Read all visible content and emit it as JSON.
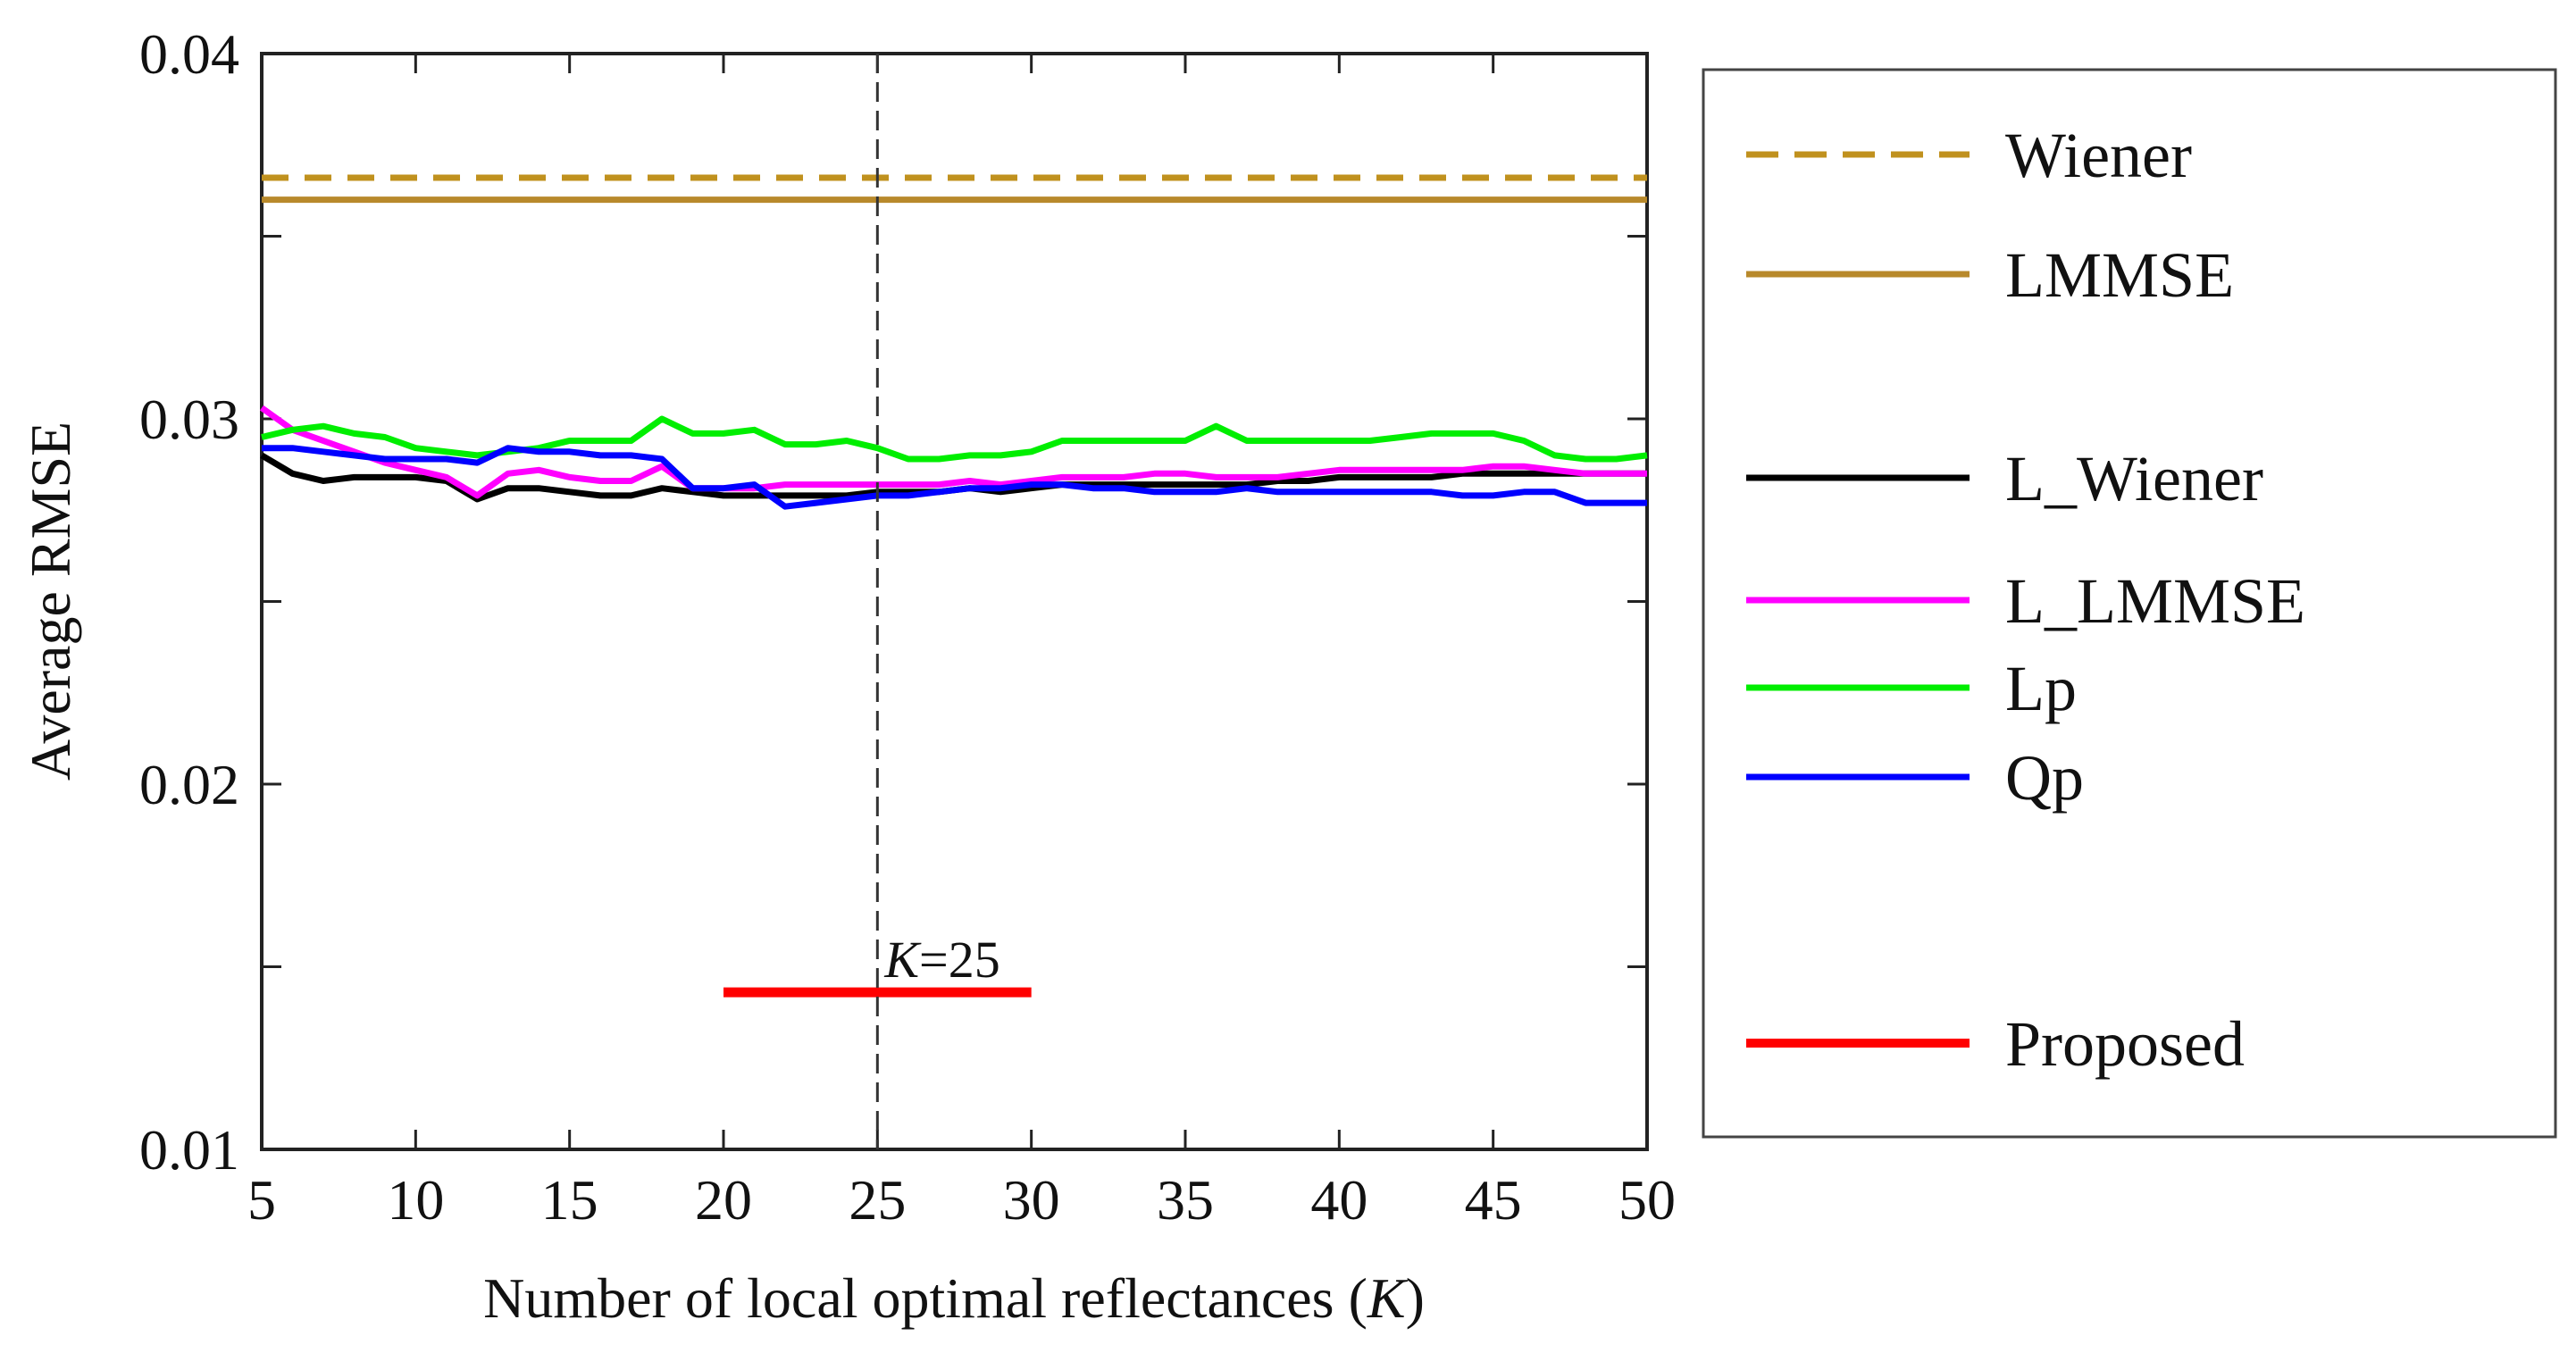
{
  "chart_data": {
    "type": "line",
    "title": "",
    "xlabel": "Number of local optimal reflectances (",
    "xlabel_var": "K",
    "xlabel_end": ")",
    "ylabel": "Average RMSE",
    "xlim": [
      5,
      50
    ],
    "ylim": [
      0.01,
      0.04
    ],
    "x_ticks": [
      5,
      10,
      15,
      20,
      25,
      30,
      35,
      40,
      45,
      50
    ],
    "x_tick_labels": [
      "5",
      "10",
      "15",
      "20",
      "25",
      "30",
      "35",
      "40",
      "45",
      "50"
    ],
    "y_ticks": [
      0.01,
      0.02,
      0.03,
      0.04
    ],
    "y_tick_labels": [
      "0.01",
      "0.02",
      "0.03",
      "0.04"
    ],
    "x": [
      5,
      6,
      7,
      8,
      9,
      10,
      11,
      12,
      13,
      14,
      15,
      16,
      17,
      18,
      19,
      20,
      21,
      22,
      23,
      24,
      25,
      26,
      27,
      28,
      29,
      30,
      31,
      32,
      33,
      34,
      35,
      36,
      37,
      38,
      39,
      40,
      41,
      42,
      43,
      44,
      45,
      46,
      47,
      48,
      49,
      50
    ],
    "legend_position": "right",
    "series": [
      {
        "name": "Wiener",
        "color": "#C0911E",
        "style": "dashed",
        "constant": 0.0366
      },
      {
        "name": "LMMSE",
        "color": "#B8892B",
        "style": "solid",
        "constant": 0.036
      },
      {
        "name": "L_Wiener",
        "color": "#000000",
        "style": "solid",
        "values": [
          0.029,
          0.0285,
          0.0283,
          0.0284,
          0.0284,
          0.0284,
          0.0283,
          0.0278,
          0.0281,
          0.0281,
          0.028,
          0.0279,
          0.0279,
          0.0281,
          0.028,
          0.0279,
          0.0279,
          0.0279,
          0.0279,
          0.0279,
          0.028,
          0.028,
          0.028,
          0.0281,
          0.028,
          0.0281,
          0.0282,
          0.0282,
          0.0282,
          0.0282,
          0.0282,
          0.0282,
          0.0282,
          0.0283,
          0.0283,
          0.0284,
          0.0284,
          0.0284,
          0.0284,
          0.0285,
          0.0285,
          0.0285,
          0.0285,
          0.0285,
          0.0285,
          0.0285
        ]
      },
      {
        "name": "L_LMMSE",
        "color": "#FF00FF",
        "style": "solid",
        "values": [
          0.0303,
          0.0297,
          0.0294,
          0.0291,
          0.0288,
          0.0286,
          0.0284,
          0.0279,
          0.0285,
          0.0286,
          0.0284,
          0.0283,
          0.0283,
          0.0287,
          0.0281,
          0.0281,
          0.0281,
          0.0282,
          0.0282,
          0.0282,
          0.0282,
          0.0282,
          0.0282,
          0.0283,
          0.0282,
          0.0283,
          0.0284,
          0.0284,
          0.0284,
          0.0285,
          0.0285,
          0.0284,
          0.0284,
          0.0284,
          0.0285,
          0.0286,
          0.0286,
          0.0286,
          0.0286,
          0.0286,
          0.0287,
          0.0287,
          0.0286,
          0.0285,
          0.0285,
          0.0285
        ]
      },
      {
        "name": "Lp",
        "color": "#00EE00",
        "style": "solid",
        "values": [
          0.0295,
          0.0297,
          0.0298,
          0.0296,
          0.0295,
          0.0292,
          0.0291,
          0.029,
          0.0291,
          0.0292,
          0.0294,
          0.0294,
          0.0294,
          0.03,
          0.0296,
          0.0296,
          0.0297,
          0.0293,
          0.0293,
          0.0294,
          0.0292,
          0.0289,
          0.0289,
          0.029,
          0.029,
          0.0291,
          0.0294,
          0.0294,
          0.0294,
          0.0294,
          0.0294,
          0.0298,
          0.0294,
          0.0294,
          0.0294,
          0.0294,
          0.0294,
          0.0295,
          0.0296,
          0.0296,
          0.0296,
          0.0294,
          0.029,
          0.0289,
          0.0289,
          0.029
        ]
      },
      {
        "name": "Qp",
        "color": "#0000FF",
        "style": "solid",
        "values": [
          0.0292,
          0.0292,
          0.0291,
          0.029,
          0.0289,
          0.0289,
          0.0289,
          0.0288,
          0.0292,
          0.0291,
          0.0291,
          0.029,
          0.029,
          0.0289,
          0.0281,
          0.0281,
          0.0282,
          0.0276,
          0.0277,
          0.0278,
          0.0279,
          0.0279,
          0.028,
          0.0281,
          0.0281,
          0.0282,
          0.0282,
          0.0281,
          0.0281,
          0.028,
          0.028,
          0.028,
          0.0281,
          0.028,
          0.028,
          0.028,
          0.028,
          0.028,
          0.028,
          0.0279,
          0.0279,
          0.028,
          0.028,
          0.0277,
          0.0277,
          0.0277
        ]
      },
      {
        "name": "Proposed",
        "color": "#FF0000",
        "style": "solid",
        "x_range": [
          20,
          30
        ],
        "constant": 0.0143
      }
    ],
    "annotations": [
      {
        "type": "vline",
        "x": 25,
        "style": "dashed",
        "color": "#333333"
      },
      {
        "type": "text",
        "prefix": "K",
        "text": "=25",
        "x": 25,
        "y": 0.0154
      }
    ]
  }
}
